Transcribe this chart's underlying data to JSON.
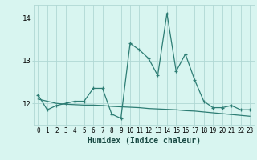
{
  "xlabel": "Humidex (Indice chaleur)",
  "x": [
    0,
    1,
    2,
    3,
    4,
    5,
    6,
    7,
    8,
    9,
    10,
    11,
    12,
    13,
    14,
    15,
    16,
    17,
    18,
    19,
    20,
    21,
    22,
    23
  ],
  "y_jagged": [
    12.2,
    11.85,
    11.95,
    12.0,
    12.05,
    12.05,
    12.35,
    12.35,
    11.75,
    11.65,
    13.4,
    13.25,
    13.05,
    12.65,
    14.1,
    12.75,
    13.15,
    12.55,
    12.05,
    11.9,
    11.9,
    11.95,
    11.85,
    11.85
  ],
  "y_trend": [
    12.1,
    12.05,
    12.0,
    11.98,
    11.97,
    11.96,
    11.96,
    11.95,
    11.93,
    11.92,
    11.91,
    11.9,
    11.88,
    11.87,
    11.86,
    11.85,
    11.83,
    11.82,
    11.8,
    11.78,
    11.76,
    11.74,
    11.72,
    11.7
  ],
  "line_color": "#2d7d74",
  "bg_color": "#d8f5f0",
  "grid_color": "#b0d8d4",
  "ylim": [
    11.5,
    14.3
  ],
  "yticks": [
    12,
    13,
    14
  ],
  "xticks": [
    0,
    1,
    2,
    3,
    4,
    5,
    6,
    7,
    8,
    9,
    10,
    11,
    12,
    13,
    14,
    15,
    16,
    17,
    18,
    19,
    20,
    21,
    22,
    23
  ]
}
